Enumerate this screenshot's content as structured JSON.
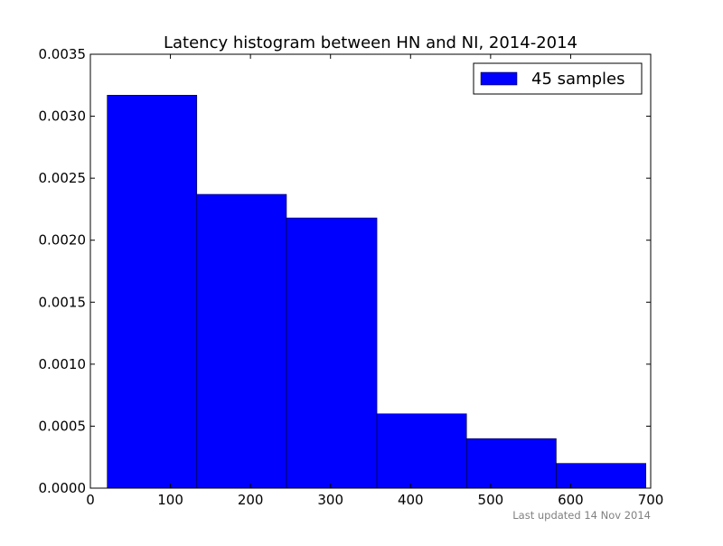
{
  "chart_data": {
    "type": "bar",
    "title": "Latency histogram between HN and NI, 2014-2014",
    "xlabel": "",
    "ylabel": "",
    "xlim": [
      0,
      700
    ],
    "ylim": [
      0,
      0.0035
    ],
    "x_ticks": [
      "0",
      "100",
      "200",
      "300",
      "400",
      "500",
      "600",
      "700"
    ],
    "x_tick_values": [
      0,
      100,
      200,
      300,
      400,
      500,
      600,
      700
    ],
    "y_ticks": [
      "0.0000",
      "0.0005",
      "0.0010",
      "0.0015",
      "0.0020",
      "0.0025",
      "0.0030",
      "0.0035"
    ],
    "y_tick_values": [
      0,
      0.0005,
      0.001,
      0.0015,
      0.002,
      0.0025,
      0.003,
      0.0035
    ],
    "bins": [
      {
        "x0": 21,
        "x1": 133,
        "value": 0.00317
      },
      {
        "x0": 133,
        "x1": 245,
        "value": 0.00237
      },
      {
        "x0": 245,
        "x1": 358,
        "value": 0.00218
      },
      {
        "x0": 358,
        "x1": 470,
        "value": 0.0006
      },
      {
        "x0": 470,
        "x1": 582,
        "value": 0.0004
      },
      {
        "x0": 582,
        "x1": 694,
        "value": 0.0002
      }
    ],
    "series": [
      {
        "name": "45 samples",
        "color": "#0000ff"
      }
    ],
    "legend_position": "top-right",
    "grid": false
  },
  "footer": {
    "note": "Last updated 14 Nov 2014"
  }
}
